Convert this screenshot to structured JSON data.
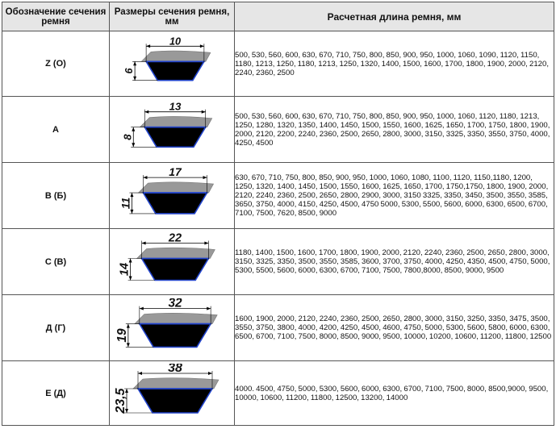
{
  "header": {
    "col1": "Обозначение сечения ремня",
    "col2": "Размеры сечения ремня, мм",
    "col3": "Расчетная длина ремня, мм"
  },
  "rows": [
    {
      "section": "Z (O)",
      "width": "10",
      "height": "6",
      "lengths": "500, 530, 560, 600, 630, 670, 710, 750, 800, 850, 900, 950, 1000, 1060, 1090, 1120, 1150, 1180, 1213, 1250, 1180, 1213, 1250, 1320, 1400, 1500, 1600, 1700, 1800, 1900, 2000, 2120, 2240, 2360, 2500"
    },
    {
      "section": "A",
      "width": "13",
      "height": "8",
      "lengths": "500, 530, 560, 600, 630, 670, 710, 750, 800, 850, 900, 950, 1000, 1060, 1120, 1180, 1213, 1250, 1280, 1320, 1350, 1400, 1450, 1500, 1550, 1600, 1625, 1650, 1700, 1750, 1800, 1900, 2000, 2120, 2200, 2240, 2360, 2500, 2650, 2800, 3000, 3150, 3325, 3350, 3550, 3750, 4000, 4250, 4500"
    },
    {
      "section": "B (Б)",
      "width": "17",
      "height": "11",
      "lengths": "630, 670, 710, 750, 800, 850, 900, 950, 1000, 1060, 1080, 1100, 1120, 1150,1180, 1200, 1250, 1320, 1400, 1450, 1500, 1550, 1600, 1625, 1650, 1700, 1750,1750, 1800, 1900, 2000, 2120, 2240, 2360, 2500, 2650, 2800, 2900, 3000, 3150 3325, 3350, 3450, 3500, 3550, 3585, 3650, 3750, 4000, 4150, 4250, 4500, 4750 5000, 5300, 5500, 5600, 6000, 6300, 6500, 6700, 7100, 7500, 7620, 8500, 9000"
    },
    {
      "section": "C (B)",
      "width": "22",
      "height": "14",
      "lengths": "1180, 1400, 1500, 1600, 1700, 1800, 1900, 2000, 2120, 2240, 2360, 2500, 2650, 2800, 3000, 3150, 3325, 3350, 3500, 3550, 3585, 3600, 3700, 3750, 4000, 4250, 4350, 4500, 4750, 5000, 5300, 5500, 5600, 6000, 6300, 6700, 7100, 7500, 7800,8000, 8500, 9000, 9500"
    },
    {
      "section": "Д (Г)",
      "width": "32",
      "height": "19",
      "lengths": "1600, 1900, 2000, 2120, 2240, 2360, 2500, 2650, 2800, 3000, 3150, 3250, 3350, 3475, 3500, 3550, 3750, 3800, 4000, 4200, 4250, 4500, 4600, 4750, 5000, 5300, 5600, 5800, 6000, 6300, 6500, 6700, 7100, 7500, 8000, 8500, 9000, 9500, 10000, 10200, 10600, 11200, 11800, 12500"
    },
    {
      "section": "E (Д)",
      "width": "38",
      "height": "23,5",
      "lengths": "4000. 4500, 4750, 5000, 5300, 5600, 6000, 6300, 6700, 7100, 7500, 8000, 8500,9000, 9500, 10000, 10600, 11200, 11800, 12500, 13200, 14000"
    }
  ],
  "colors": {
    "belt_black": "#000000",
    "belt_grey": "#999999",
    "belt_edge": "#2244cc",
    "header_bg": "#e6e6e6"
  }
}
